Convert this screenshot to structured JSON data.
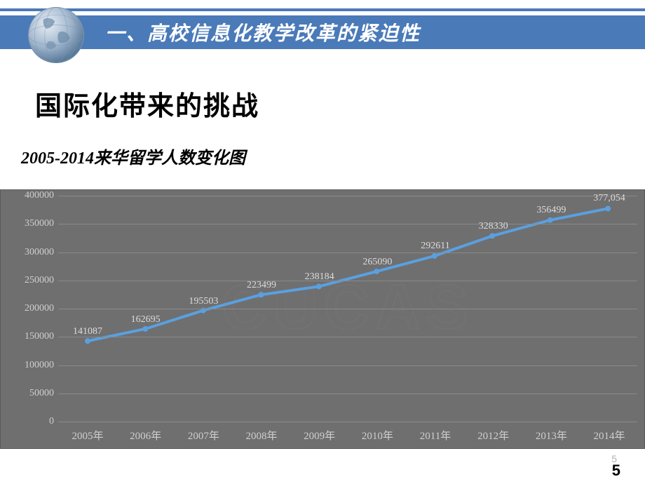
{
  "header": {
    "title": "一、高校信息化教学改革的紧迫性",
    "band_color": "#4a7ab8",
    "line_color": "#4a7ab8"
  },
  "headings": {
    "main": "国际化带来的挑战",
    "sub": "2005-2014来华留学人数变化图"
  },
  "chart": {
    "type": "line",
    "background_color": "#6f6f6f",
    "grid_color": "#8a8a8a",
    "line_color": "#5aa0e0",
    "line_width": 4,
    "marker_color": "#5aa0e0",
    "marker_size": 4,
    "text_color": "#cfcfcf",
    "label_fontsize": 14,
    "watermark": "CUCAS",
    "ylim": [
      0,
      400000
    ],
    "ytick_step": 50000,
    "y_labels": [
      "0",
      "50000",
      "100000",
      "150000",
      "200000",
      "250000",
      "300000",
      "350000",
      "400000"
    ],
    "categories": [
      "2005年",
      "2006年",
      "2007年",
      "2008年",
      "2009年",
      "2010年",
      "2011年",
      "2012年",
      "2013年",
      "2014年"
    ],
    "values": [
      141087,
      162695,
      195503,
      223499,
      238184,
      265090,
      292611,
      328330,
      356499,
      377054
    ],
    "data_labels": [
      "141087",
      "162695",
      "195503",
      "223499",
      "238184",
      "265090",
      "292611",
      "328330",
      "356499",
      "377,054"
    ]
  },
  "page": {
    "small": "5",
    "big": "5"
  }
}
